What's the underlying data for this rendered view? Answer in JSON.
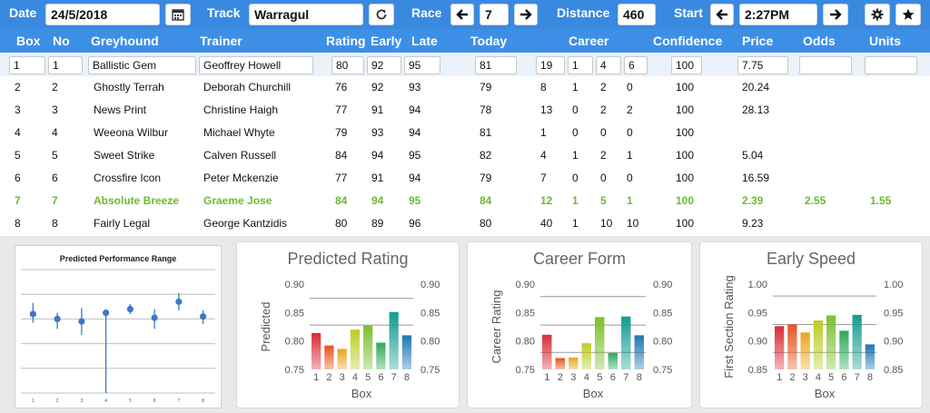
{
  "toolbar": {
    "date_label": "Date",
    "date_value": "24/5/2018",
    "track_label": "Track",
    "track_value": "Warragul",
    "race_label": "Race",
    "race_value": "7",
    "distance_label": "Distance",
    "distance_value": "460",
    "start_label": "Start",
    "start_value": "2:27PM",
    "icons": [
      "calendar-icon",
      "refresh-icon",
      "arrow-left-icon",
      "arrow-right-icon",
      "gear-icon",
      "star-icon"
    ]
  },
  "columns": [
    "Box",
    "No",
    "Greyhound",
    "Trainer",
    "Rating",
    "Early",
    "Late",
    "Today",
    "Career",
    "Confidence",
    "Price",
    "Odds",
    "Units"
  ],
  "rows": [
    {
      "box": "1",
      "no": "1",
      "greyhound": "Ballistic Gem",
      "trainer": "Geoffrey Howell",
      "rating": "80",
      "early": "92",
      "late": "95",
      "today": "81",
      "c1": "19",
      "c2": "1",
      "c3": "4",
      "c4": "6",
      "confidence": "100",
      "price": "7.75",
      "odds": "",
      "units": ""
    },
    {
      "box": "2",
      "no": "2",
      "greyhound": "Ghostly Terrah",
      "trainer": "Deborah Churchill",
      "rating": "76",
      "early": "92",
      "late": "93",
      "today": "79",
      "c1": "8",
      "c2": "1",
      "c3": "2",
      "c4": "0",
      "confidence": "100",
      "price": "20.24",
      "odds": "",
      "units": ""
    },
    {
      "box": "3",
      "no": "3",
      "greyhound": "News Print",
      "trainer": "Christine Haigh",
      "rating": "77",
      "early": "91",
      "late": "94",
      "today": "78",
      "c1": "13",
      "c2": "0",
      "c3": "2",
      "c4": "2",
      "confidence": "100",
      "price": "28.13",
      "odds": "",
      "units": ""
    },
    {
      "box": "4",
      "no": "4",
      "greyhound": "Weeona Wilbur",
      "trainer": "Michael Whyte",
      "rating": "79",
      "early": "93",
      "late": "94",
      "today": "81",
      "c1": "1",
      "c2": "0",
      "c3": "0",
      "c4": "0",
      "confidence": "100",
      "price": "",
      "odds": "",
      "units": ""
    },
    {
      "box": "5",
      "no": "5",
      "greyhound": "Sweet Strike",
      "trainer": "Calven Russell",
      "rating": "84",
      "early": "94",
      "late": "95",
      "today": "82",
      "c1": "4",
      "c2": "1",
      "c3": "2",
      "c4": "1",
      "confidence": "100",
      "price": "5.04",
      "odds": "",
      "units": ""
    },
    {
      "box": "6",
      "no": "6",
      "greyhound": "Crossfire Icon",
      "trainer": "Peter Mckenzie",
      "rating": "77",
      "early": "91",
      "late": "94",
      "today": "79",
      "c1": "7",
      "c2": "0",
      "c3": "0",
      "c4": "0",
      "confidence": "100",
      "price": "16.59",
      "odds": "",
      "units": ""
    },
    {
      "box": "7",
      "no": "7",
      "greyhound": "Absolute Breeze",
      "trainer": "Graeme Jose",
      "rating": "84",
      "early": "94",
      "late": "95",
      "today": "84",
      "c1": "12",
      "c2": "1",
      "c3": "5",
      "c4": "1",
      "confidence": "100",
      "price": "2.39",
      "odds": "2.55",
      "units": "1.55"
    },
    {
      "box": "8",
      "no": "8",
      "greyhound": "Fairly Legal",
      "trainer": "George Kantzidis",
      "rating": "80",
      "early": "89",
      "late": "96",
      "today": "80",
      "c1": "40",
      "c2": "1",
      "c3": "10",
      "c4": "10",
      "confidence": "100",
      "price": "9.23",
      "odds": "",
      "units": ""
    }
  ],
  "colors": {
    "accent": "#3a89e0",
    "highlight": "#6cbb2e"
  },
  "chart_data": [
    {
      "type": "scatter",
      "title": "Predicted Performance Range",
      "x": [
        1,
        2,
        3,
        4,
        5,
        6,
        7,
        8
      ],
      "y": [
        0.64,
        0.6,
        0.58,
        0.65,
        0.68,
        0.61,
        0.74,
        0.62
      ],
      "low": [
        0.57,
        0.52,
        0.47,
        0.0,
        0.64,
        0.52,
        0.67,
        0.56
      ],
      "high": [
        0.73,
        0.65,
        0.69,
        0.66,
        0.72,
        0.68,
        0.81,
        0.67
      ],
      "xlabel": "",
      "ylabel": "",
      "ylim": [
        0,
        1
      ],
      "grid": true
    },
    {
      "type": "bar",
      "title": "Predicted Rating",
      "categories": [
        "1",
        "2",
        "3",
        "4",
        "5",
        "6",
        "7",
        "8"
      ],
      "values": [
        0.814,
        0.792,
        0.786,
        0.82,
        0.827,
        0.797,
        0.851,
        0.81
      ],
      "xlabel": "Box",
      "ylabel": "Predicted",
      "ylim": [
        0.75,
        0.9
      ],
      "yticks": [
        "0.90",
        "0.85",
        "0.80",
        "0.75"
      ],
      "ref_lines": [
        0.875,
        0.828
      ]
    },
    {
      "type": "bar",
      "title": "Career Form",
      "categories": [
        "1",
        "2",
        "3",
        "4",
        "5",
        "6",
        "7",
        "8"
      ],
      "values": [
        0.811,
        0.77,
        0.771,
        0.796,
        0.842,
        0.779,
        0.843,
        0.81
      ],
      "xlabel": "Box",
      "ylabel": "Career Rating",
      "ylim": [
        0.75,
        0.9
      ],
      "yticks": [
        "0.90",
        "0.85",
        "0.80",
        "0.75"
      ],
      "ref_lines": [
        0.878,
        0.828,
        0.78
      ]
    },
    {
      "type": "bar",
      "title": "Early Speed",
      "categories": [
        "1",
        "2",
        "3",
        "4",
        "5",
        "6",
        "7",
        "8"
      ],
      "values": [
        0.926,
        0.929,
        0.915,
        0.936,
        0.945,
        0.918,
        0.946,
        0.894
      ],
      "xlabel": "Box",
      "ylabel": "First Section Rating",
      "ylim": [
        0.85,
        1.0
      ],
      "yticks": [
        "1.00",
        "0.95",
        "0.90",
        "0.85"
      ],
      "ref_lines": [
        0.979,
        0.929,
        0.88
      ]
    }
  ]
}
